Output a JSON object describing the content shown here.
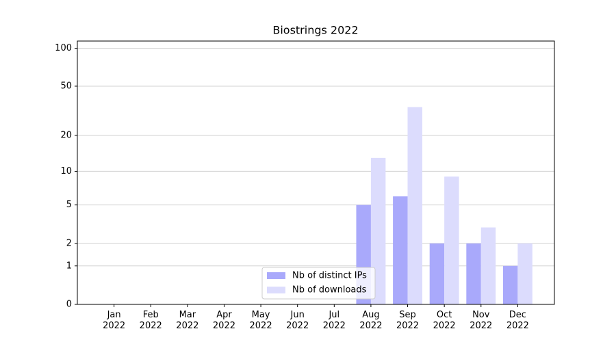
{
  "chart_data": {
    "type": "bar",
    "title": "Biostrings 2022",
    "categories": [
      "Jan\n2022",
      "Feb\n2022",
      "Mar\n2022",
      "Apr\n2022",
      "May\n2022",
      "Jun\n2022",
      "Jul\n2022",
      "Aug\n2022",
      "Sep\n2022",
      "Oct\n2022",
      "Nov\n2022",
      "Dec\n2022"
    ],
    "series": [
      {
        "name": "Nb of distinct IPs",
        "color": "#a9a9fb",
        "values": [
          0,
          0,
          0,
          0,
          0,
          0,
          0,
          5,
          6,
          2,
          2,
          1
        ]
      },
      {
        "name": "Nb of downloads",
        "color": "#dcdcfd",
        "values": [
          0,
          0,
          0,
          0,
          0,
          0,
          0,
          13,
          34,
          9,
          3,
          2
        ]
      }
    ],
    "yscale": "log1p",
    "ylim": [
      0,
      114
    ],
    "yticks": [
      0,
      1,
      2,
      5,
      10,
      20,
      50,
      100
    ],
    "grid": true,
    "legend": "lower center"
  }
}
